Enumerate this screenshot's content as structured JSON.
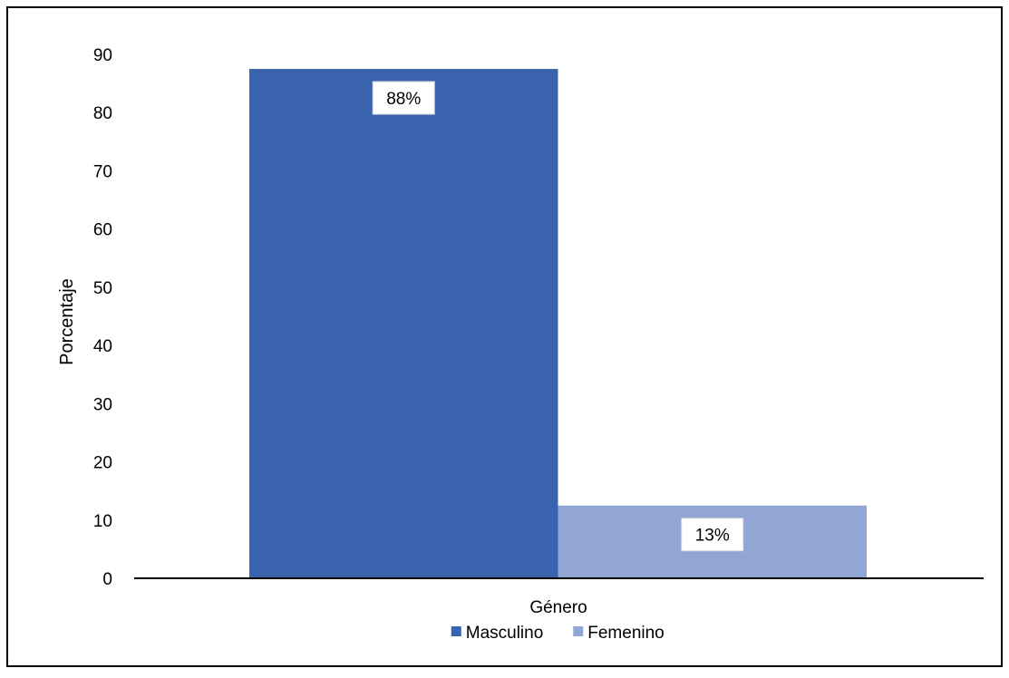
{
  "chart_data": {
    "type": "bar",
    "title": "",
    "xlabel": "Género",
    "ylabel": "Porcentaje",
    "ylim": [
      0,
      90
    ],
    "yticks": [
      0,
      10,
      20,
      30,
      40,
      50,
      60,
      70,
      80,
      90
    ],
    "categories": [
      "Género"
    ],
    "series": [
      {
        "name": "Masculino",
        "values": [
          87.5
        ],
        "label": "88%",
        "color": "#3a63ad"
      },
      {
        "name": "Femenino",
        "values": [
          12.5
        ],
        "label": "13%",
        "color": "#92a6d6"
      }
    ],
    "legend": "bottom",
    "grid": false
  }
}
